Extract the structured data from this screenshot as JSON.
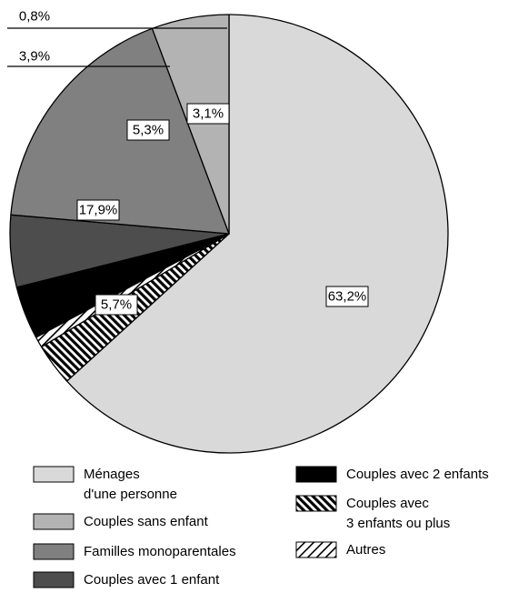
{
  "chart_data": {
    "type": "pie",
    "categories": [
      "Ménages d'une personne",
      "Couples avec 3 enfants ou plus",
      "Autres",
      "Couples avec 2 enfants",
      "Couples avec 1 enfant",
      "Familles monoparentales",
      "Couples sans enfant"
    ],
    "slices": [
      {
        "value": 63.2,
        "label": "63,2%",
        "fill": "solid",
        "color": "#d9d9d9"
      },
      {
        "value": 3.1,
        "label": "3,1%",
        "fill": "hatch-forward",
        "color": "#000000"
      },
      {
        "value": 0.8,
        "label": "0,8%",
        "fill": "hatch-back",
        "color": "#000000"
      },
      {
        "value": 3.9,
        "label": "3,9%",
        "fill": "solid",
        "color": "#000000"
      },
      {
        "value": 5.3,
        "label": "5,3%",
        "fill": "solid",
        "color": "#4d4d4d"
      },
      {
        "value": 17.9,
        "label": "17,9%",
        "fill": "solid",
        "color": "#808080"
      },
      {
        "value": 5.7,
        "label": "5,7%",
        "fill": "solid",
        "color": "#b3b3b3"
      }
    ],
    "legend": {
      "placement": "bottom",
      "left": [
        {
          "lines": [
            "Ménages",
            "d'une personne"
          ],
          "fill": "solid",
          "color": "#d9d9d9"
        },
        {
          "lines": [
            "Couples sans enfant"
          ],
          "fill": "solid",
          "color": "#b3b3b3"
        },
        {
          "lines": [
            "Familles monoparentales"
          ],
          "fill": "solid",
          "color": "#808080"
        },
        {
          "lines": [
            "Couples avec 1 enfant"
          ],
          "fill": "solid",
          "color": "#4d4d4d"
        }
      ],
      "right": [
        {
          "lines": [
            "Couples avec 2 enfants"
          ],
          "fill": "solid",
          "color": "#000000"
        },
        {
          "lines": [
            "Couples avec",
            "3 enfants ou plus"
          ],
          "fill": "hatch-forward",
          "color": "#000000"
        },
        {
          "lines": [
            "Autres"
          ],
          "fill": "hatch-back",
          "color": "#000000"
        }
      ]
    }
  }
}
